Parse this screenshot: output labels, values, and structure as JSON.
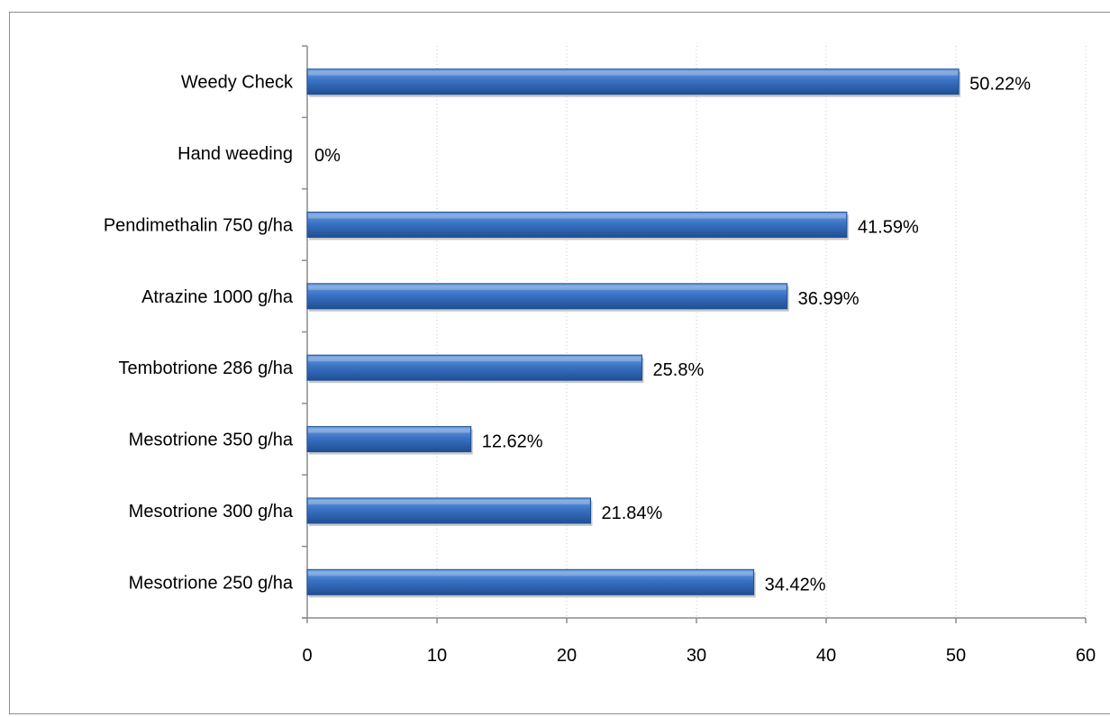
{
  "chart_data": {
    "type": "bar",
    "orientation": "horizontal",
    "categories": [
      "Weedy Check",
      "Hand weeding",
      "Pendimethalin 750 g/ha",
      "Atrazine 1000 g/ha",
      "Tembotrione 286 g/ha",
      "Mesotrione 350 g/ha",
      "Mesotrione 300 g/ha",
      "Mesotrione 250 g/ha"
    ],
    "values": [
      50.22,
      0,
      41.59,
      36.99,
      25.8,
      12.62,
      21.84,
      34.42
    ],
    "data_labels": [
      "50.22%",
      "0%",
      "41.59%",
      "36.99%",
      "25.8%",
      "12.62%",
      "21.84%",
      "34.42%"
    ],
    "xlim": [
      0,
      60
    ],
    "xticks": [
      0,
      10,
      20,
      30,
      40,
      50,
      60
    ],
    "xtick_labels": [
      "0",
      "10",
      "20",
      "30",
      "40",
      "50",
      "60"
    ],
    "grid": "vertical dotted",
    "legend": "none",
    "colors": {
      "bar_light": "#6e9fe0",
      "bar_mid": "#3a72c4",
      "bar_dark": "#1f4f94",
      "axis": "#8c8c8c",
      "grid": "#c8c8c8"
    }
  }
}
